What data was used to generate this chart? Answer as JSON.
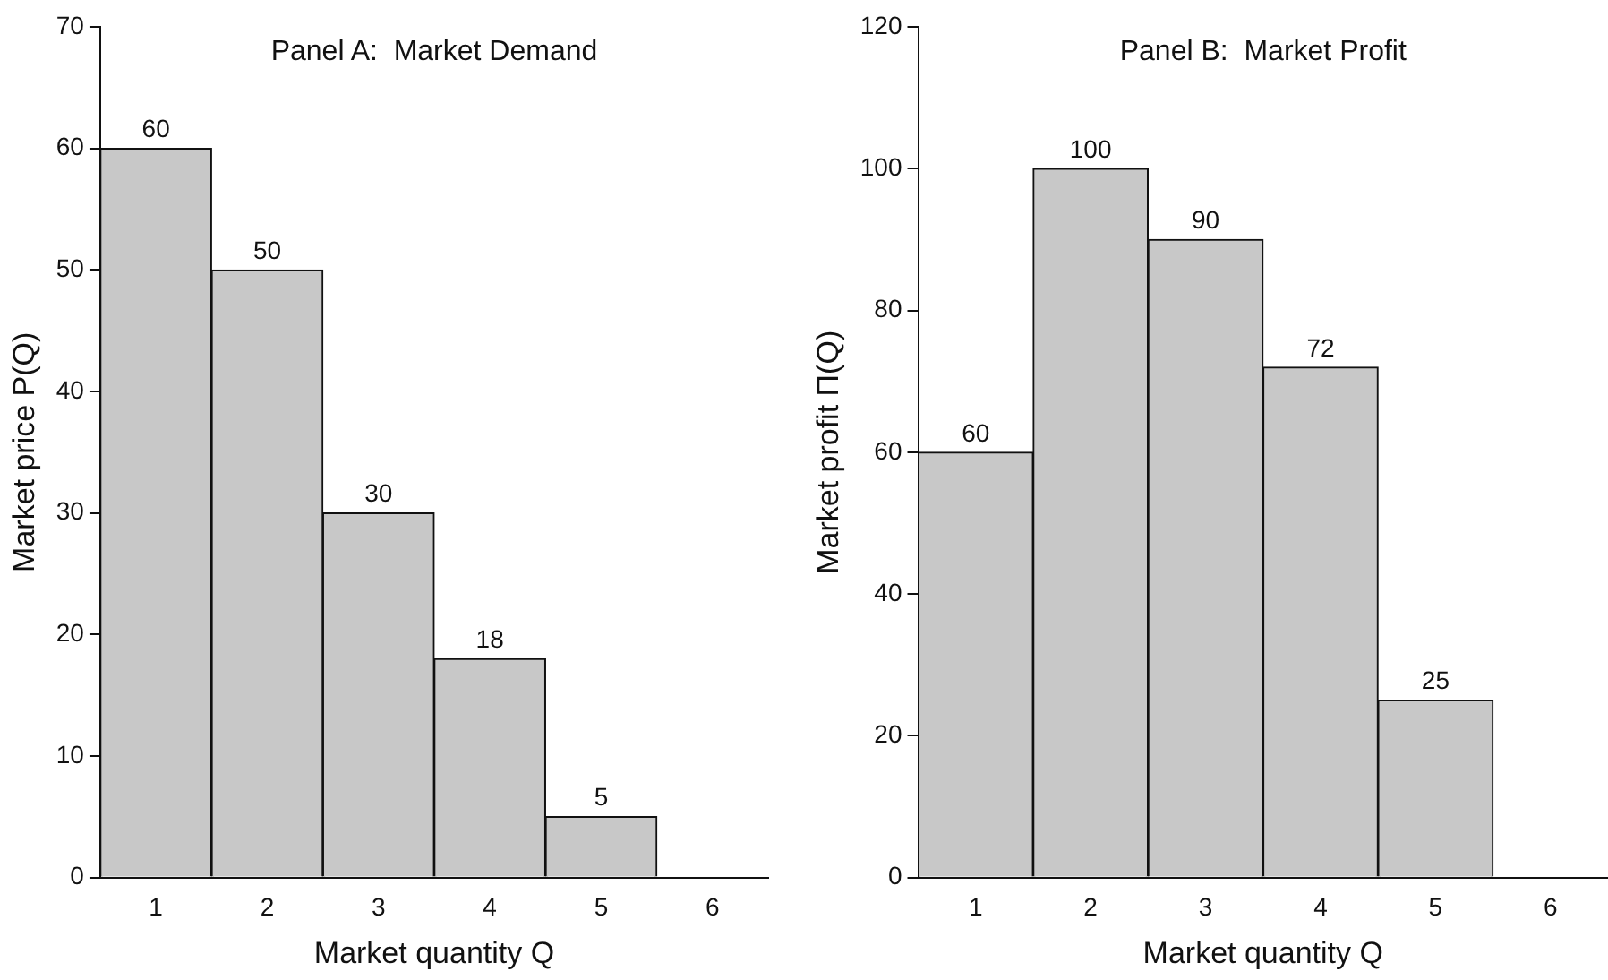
{
  "chart_data": [
    {
      "type": "bar",
      "title": "Panel A:  Market Demand",
      "xlabel": "Market quantity Q",
      "ylabel": "Market price P(Q)",
      "categories": [
        "1",
        "2",
        "3",
        "4",
        "5",
        "6"
      ],
      "values": [
        60,
        50,
        30,
        18,
        5,
        null
      ],
      "color": "#c8c8c8",
      "ylim": [
        0,
        70
      ],
      "yticks": [
        0,
        10,
        20,
        30,
        40,
        50,
        60,
        70
      ],
      "grid": false,
      "legend": false,
      "data_labels": true
    },
    {
      "type": "bar",
      "title": "Panel B:  Market Profit",
      "xlabel": "Market quantity Q",
      "ylabel": "Market profit Π(Q)",
      "categories": [
        "1",
        "2",
        "3",
        "4",
        "5",
        "6"
      ],
      "values": [
        60,
        100,
        90,
        72,
        25,
        null
      ],
      "color": "#c8c8c8",
      "ylim": [
        0,
        120
      ],
      "yticks": [
        0,
        20,
        40,
        60,
        80,
        100,
        120
      ],
      "grid": false,
      "legend": false,
      "data_labels": true
    }
  ]
}
